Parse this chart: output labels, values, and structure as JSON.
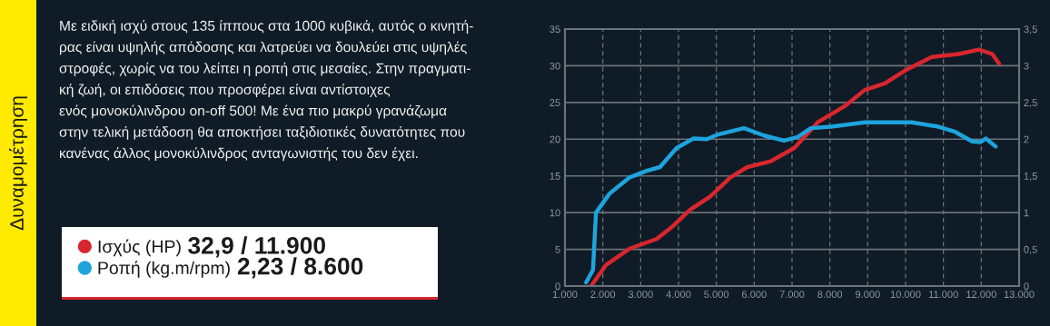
{
  "chart_data": {
    "type": "line",
    "title": "Δυναμομέτρηση",
    "annotations": [
      "Με ειδική ισχύ στους 135 ίππους στα 1000 κυβικά, αυτός ο κινητή-\nρας είναι υψηλής απόδοσης και λατρεύει να δουλεύει στις υψηλές\nστροφές, χωρίς να του λείπει η ροπή στις μεσαίες. Στην πραγματι-\nκή ζωή, οι επιδόσεις που προσφέρει είναι αντίστοιχες\nενός μονοκύλινδρου on-off 500! Με ένα πιο μακρύ γρανάζωμα\nστην τελική μετάδοση θα αποκτήσει ταξιδιοτικές δυνατότητες που\nκανένας άλλος μονοκύλινδρος ανταγωνιστής του δεν έχει.",
      "32,9 / 11.900",
      "2,23 / 8.600"
    ],
    "series": [
      {
        "name": "Ισχύς (HP)",
        "color": "#d8262e",
        "x": [
          1690,
          2090,
          2710,
          3420,
          3860,
          4310,
          4840,
          5370,
          5820,
          6440,
          7060,
          7680,
          8390,
          8920,
          9450,
          10000,
          10690,
          11400,
          11940,
          12290,
          12470
        ],
        "values": [
          0,
          2.9,
          5.1,
          6.4,
          8.2,
          10.4,
          12.2,
          14.8,
          16.2,
          17.0,
          18.8,
          22.3,
          24.5,
          26.7,
          27.6,
          29.4,
          31.2,
          31.6,
          32.2,
          31.6,
          30.3
        ]
      },
      {
        "name": "Ροπή (kg.m/rpm)",
        "color": "#1ea4dd",
        "axis": "y2",
        "x": [
          1560,
          1740,
          1820,
          2180,
          2710,
          3160,
          3510,
          3950,
          4400,
          4750,
          5020,
          5730,
          6260,
          6790,
          7150,
          7500,
          8030,
          8920,
          9450,
          10160,
          10870,
          11310,
          11760,
          11980,
          12120,
          12380
        ],
        "values": [
          0.05,
          0.22,
          1.0,
          1.26,
          1.48,
          1.57,
          1.62,
          1.88,
          2.01,
          2.0,
          2.06,
          2.15,
          2.05,
          1.98,
          2.03,
          2.15,
          2.17,
          2.23,
          2.23,
          2.23,
          2.17,
          2.1,
          1.97,
          1.96,
          2.01,
          1.9
        ]
      }
    ],
    "xlim": [
      1000,
      13000
    ],
    "xticks": [
      {
        "value": 1000,
        "label": "1.000"
      },
      {
        "value": 2000,
        "label": "2.000"
      },
      {
        "value": 3000,
        "label": "3.000"
      },
      {
        "value": 4000,
        "label": "4.000"
      },
      {
        "value": 5000,
        "label": "5.000"
      },
      {
        "value": 6000,
        "label": "6.000"
      },
      {
        "value": 7000,
        "label": "7.000"
      },
      {
        "value": 8000,
        "label": "8.000"
      },
      {
        "value": 9000,
        "label": "9.000"
      },
      {
        "value": 10000,
        "label": "10.000"
      },
      {
        "value": 11000,
        "label": "11.000"
      },
      {
        "value": 12000,
        "label": "12.000"
      },
      {
        "value": 13000,
        "label": "13.000"
      }
    ],
    "ylim": [
      0,
      35
    ],
    "yticks": [
      0,
      5,
      10,
      15,
      20,
      25,
      30,
      35
    ],
    "y2lim": [
      0,
      3.5
    ],
    "y2ticks": [
      0,
      {
        "value": 0.5,
        "label": "0,5"
      },
      1,
      {
        "value": 1.5,
        "label": "1,5"
      },
      2,
      {
        "value": 2.5,
        "label": "2,5"
      },
      3,
      {
        "value": 3.5,
        "label": "3,5"
      }
    ],
    "grid": true,
    "legend": "left",
    "marker": "none",
    "line_style": "solid"
  }
}
